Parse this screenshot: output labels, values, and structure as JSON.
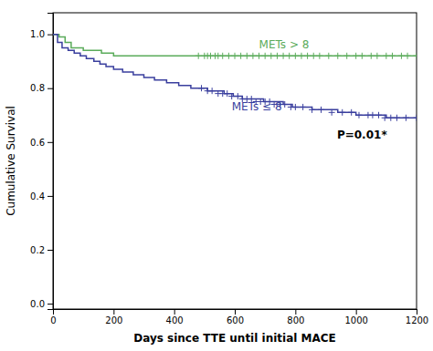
{
  "chart_data": {
    "type": "line",
    "xlabel": "Days since TTE until initial MACE",
    "ylabel": "Cumulative Survival",
    "xlim": [
      0,
      1200
    ],
    "ylim": [
      -0.02,
      1.08
    ],
    "xticks": [
      0,
      200,
      400,
      600,
      800,
      1000,
      1200
    ],
    "yticks": [
      {
        "value": 0.0,
        "label": "0.0"
      },
      0.2,
      0.4,
      0.6,
      0.8,
      {
        "value": 1.0,
        "label": "1.0"
      }
    ],
    "grid": false,
    "series": [
      {
        "type": "step",
        "color": "#5aab5a",
        "x": [
          0,
          20,
          40,
          60,
          100,
          160,
          200,
          1200
        ],
        "values": [
          1.0,
          0.99,
          0.97,
          0.95,
          0.94,
          0.93,
          0.92,
          0.92
        ]
      },
      {
        "type": "step",
        "color": "#3a3f9e",
        "x": [
          0,
          15,
          30,
          50,
          70,
          90,
          110,
          135,
          155,
          175,
          200,
          230,
          265,
          300,
          335,
          375,
          415,
          455,
          490,
          510,
          535,
          565,
          595,
          625,
          660,
          695,
          730,
          760,
          790,
          820,
          855,
          895,
          940,
          970,
          1000,
          1050,
          1100,
          1140,
          1200
        ],
        "values": [
          1.0,
          0.97,
          0.95,
          0.94,
          0.93,
          0.92,
          0.91,
          0.9,
          0.89,
          0.88,
          0.87,
          0.86,
          0.85,
          0.84,
          0.83,
          0.82,
          0.81,
          0.8,
          0.8,
          0.79,
          0.79,
          0.78,
          0.77,
          0.76,
          0.76,
          0.75,
          0.75,
          0.74,
          0.73,
          0.73,
          0.72,
          0.72,
          0.71,
          0.71,
          0.7,
          0.7,
          0.69,
          0.69,
          0.69
        ]
      },
      {
        "type": "scatter",
        "marker": "plus",
        "color": "#5aab5a",
        "x": [
          480,
          500,
          510,
          520,
          535,
          545,
          560,
          580,
          600,
          620,
          640,
          660,
          680,
          700,
          720,
          740,
          760,
          780,
          800,
          820,
          840,
          860,
          880,
          910,
          940,
          970,
          1000,
          1020,
          1050,
          1070,
          1100,
          1120,
          1150,
          1170,
          1200
        ],
        "values": [
          0.92,
          0.92,
          0.92,
          0.92,
          0.92,
          0.92,
          0.92,
          0.92,
          0.92,
          0.92,
          0.92,
          0.92,
          0.92,
          0.92,
          0.92,
          0.92,
          0.92,
          0.92,
          0.92,
          0.92,
          0.92,
          0.92,
          0.92,
          0.92,
          0.92,
          0.92,
          0.92,
          0.92,
          0.92,
          0.92,
          0.92,
          0.92,
          0.92,
          0.92,
          0.92
        ]
      },
      {
        "type": "scatter",
        "marker": "plus",
        "color": "#3a3f9e",
        "x": [
          490,
          510,
          525,
          545,
          560,
          575,
          590,
          610,
          625,
          640,
          655,
          670,
          685,
          700,
          715,
          730,
          750,
          765,
          785,
          800,
          825,
          855,
          885,
          920,
          955,
          985,
          1010,
          1040,
          1055,
          1075,
          1095,
          1115,
          1135,
          1165,
          1200
        ],
        "values": [
          0.8,
          0.79,
          0.79,
          0.78,
          0.78,
          0.78,
          0.77,
          0.77,
          0.76,
          0.76,
          0.76,
          0.75,
          0.75,
          0.75,
          0.75,
          0.74,
          0.74,
          0.74,
          0.73,
          0.73,
          0.73,
          0.72,
          0.72,
          0.71,
          0.71,
          0.71,
          0.7,
          0.7,
          0.7,
          0.7,
          0.69,
          0.69,
          0.69,
          0.69,
          0.69
        ]
      }
    ],
    "annotations": [
      {
        "text": "METs > 8",
        "x": 680,
        "y": 0.96,
        "color": "#5aab5a"
      },
      {
        "text": "METs ≤ 8",
        "x": 590,
        "y": 0.73,
        "color": "#3a3f9e"
      },
      {
        "text": "P=0.01*",
        "x": 1020,
        "y": 0.625
      }
    ]
  }
}
